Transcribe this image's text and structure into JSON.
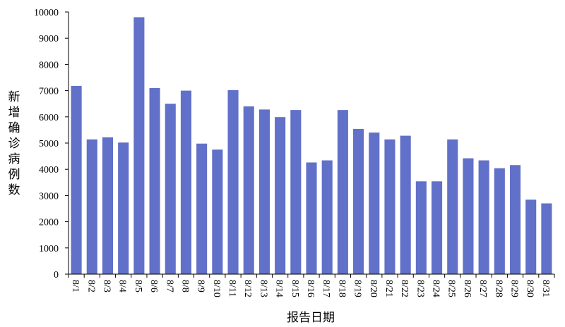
{
  "chart_data": {
    "type": "bar",
    "xlabel": "报告日期",
    "ylabel": "新增确诊病例数",
    "ylim": [
      0,
      10000
    ],
    "yticks": [
      0,
      1000,
      2000,
      3000,
      4000,
      5000,
      6000,
      7000,
      8000,
      9000,
      10000
    ],
    "grid": false,
    "bar_color": "#6170C8",
    "categories": [
      "8/1",
      "8/2",
      "8/3",
      "8/4",
      "8/5",
      "8/6",
      "8/7",
      "8/8",
      "8/9",
      "8/10",
      "8/11",
      "8/12",
      "8/13",
      "8/14",
      "8/15",
      "8/16",
      "8/17",
      "8/18",
      "8/19",
      "8/20",
      "8/21",
      "8/22",
      "8/23",
      "8/24",
      "8/25",
      "8/26",
      "8/27",
      "8/28",
      "8/29",
      "8/30",
      "8/31"
    ],
    "values": [
      7180,
      5140,
      5220,
      5020,
      9800,
      7100,
      6500,
      7000,
      4980,
      4750,
      7020,
      6400,
      6280,
      5990,
      6260,
      4260,
      4340,
      6260,
      5540,
      5400,
      5140,
      5280,
      3540,
      3540,
      5140,
      4420,
      4340,
      4040,
      4160,
      2840,
      2700
    ]
  }
}
